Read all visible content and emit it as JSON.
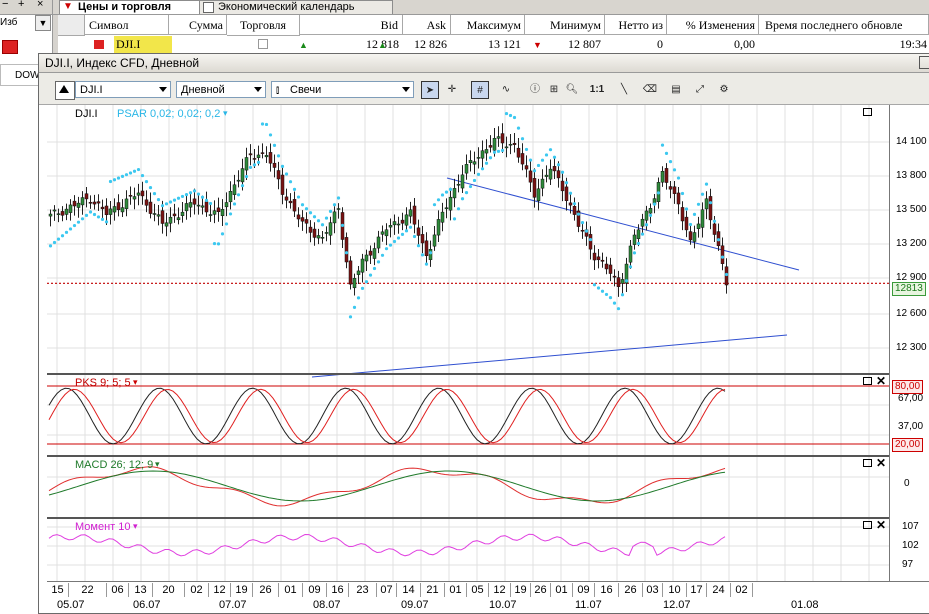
{
  "tabs": [
    {
      "label": "Цены и торговля"
    },
    {
      "label": "Экономический календарь"
    }
  ],
  "left": {
    "izb": "Изб",
    "dow": "DOW"
  },
  "quotes": {
    "columns": [
      "Символ",
      "Сумма",
      "Торговля",
      "Bid",
      "Ask",
      "Максимум",
      "Минимум",
      "Нетто из",
      "% Изменения",
      "Время последнего обновле"
    ],
    "row": {
      "symbol": "DJI.I",
      "bid": "12 818",
      "ask": "12 826",
      "high": "13 121",
      "low": "12 807",
      "net": "0",
      "pct": "0,00",
      "time": "19:34"
    }
  },
  "window": {
    "title": "DJI.I, Индекс CFD, Дневной"
  },
  "toolbar": {
    "symbol": "DJI.I",
    "period": "Дневной",
    "type": "Свечи",
    "one_to_one": "1:1"
  },
  "main": {
    "symbol_label": "DJI.I",
    "psar_label": "PSAR 0,02; 0,02; 0,2",
    "price_tag": "12813",
    "ticks": [
      "14 100",
      "13 800",
      "13 500",
      "13 200",
      "12 900",
      "12 600",
      "12 300"
    ]
  },
  "stoch": {
    "label": "PKS 9; 5; 5",
    "tag_high": "80,00",
    "tag_low": "20,00",
    "ticks": [
      "67,00",
      "37,00"
    ]
  },
  "macd": {
    "label": "MACD 26; 12; 9",
    "ticks": [
      "0"
    ]
  },
  "momentum": {
    "label": "Момент 10",
    "ticks": [
      "107",
      "102",
      "97"
    ]
  },
  "xaxis": {
    "days": [
      "15",
      "22",
      "06",
      "13",
      "20",
      "02",
      "12",
      "19",
      "26",
      "01",
      "09",
      "16",
      "23",
      "07",
      "14",
      "21",
      "01",
      "05",
      "12",
      "19",
      "26",
      "01",
      "09",
      "16",
      "26",
      "03",
      "10",
      "17",
      "24",
      "02"
    ],
    "months": [
      "05.07",
      "06.07",
      "07.07",
      "08.07",
      "09.07",
      "10.07",
      "11.07",
      "12.07",
      "01.08"
    ]
  },
  "colors": {
    "bull": "#2e8b3a",
    "bear": "#7a1212",
    "psar": "#3cc8f0",
    "trend": "#2f4fd0",
    "stoch_k": "#222",
    "stoch_d": "#e02020",
    "macd": "#e03030",
    "signal": "#1f7a2a",
    "mom": "#e040e0",
    "support": "#c00000"
  }
}
